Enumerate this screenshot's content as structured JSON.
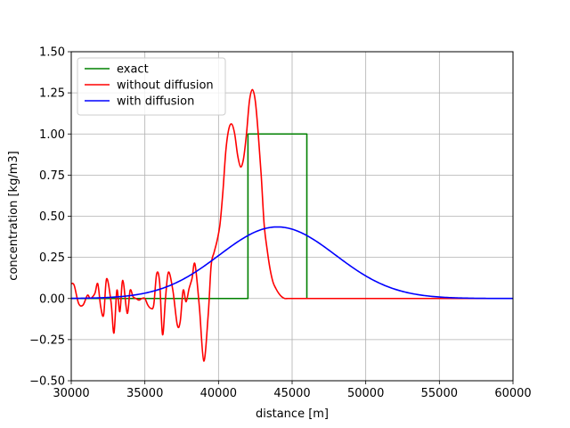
{
  "chart_data": {
    "type": "line",
    "xlabel": "distance [m]",
    "ylabel": "concentration [kg/m3]",
    "xlim": [
      30000,
      60000
    ],
    "ylim": [
      -0.5,
      1.5
    ],
    "xticks": [
      30000,
      35000,
      40000,
      45000,
      50000,
      55000,
      60000
    ],
    "yticks": [
      -0.5,
      -0.25,
      0.0,
      0.25,
      0.5,
      0.75,
      1.0,
      1.25,
      1.5
    ],
    "xtick_labels": [
      "30000",
      "35000",
      "40000",
      "45000",
      "50000",
      "55000",
      "60000"
    ],
    "ytick_labels": [
      "−0.50",
      "−0.25",
      "0.00",
      "0.25",
      "0.50",
      "0.75",
      "1.00",
      "1.25",
      "1.50"
    ],
    "grid": true,
    "legend_position": "top-left",
    "series": [
      {
        "name": "exact",
        "color": "#008000",
        "x": [
          30000,
          42000,
          42000,
          46000,
          46000,
          60000
        ],
        "y": [
          0,
          0,
          1.0,
          1.0,
          0,
          0
        ]
      },
      {
        "name": "without diffusion",
        "color": "#ff0000",
        "x": [
          30000,
          30200,
          30500,
          30800,
          31100,
          31300,
          31600,
          31800,
          32000,
          32200,
          32400,
          32700,
          32900,
          33100,
          33300,
          33500,
          33800,
          34000,
          34200,
          34400,
          34600,
          34800,
          35000,
          35200,
          35400,
          35600,
          35800,
          36000,
          36200,
          36400,
          36600,
          36900,
          37200,
          37400,
          37600,
          37800,
          38000,
          38200,
          38400,
          38700,
          39000,
          39300,
          39500,
          39700,
          39900,
          40100,
          40300,
          40500,
          40700,
          40900,
          41100,
          41300,
          41500,
          41700,
          41900,
          42100,
          42300,
          42500,
          42700,
          42900,
          43100,
          43300,
          43500,
          43700,
          43900,
          44100,
          44300,
          44500,
          44700,
          44900,
          45100,
          45300,
          45500,
          45700,
          45900,
          46100,
          46300,
          46500,
          46700,
          46900,
          47100,
          47300,
          47600,
          48000,
          48500,
          49000,
          50000,
          52000,
          55000,
          60000
        ],
        "y": [
          0.09,
          0.08,
          -0.03,
          -0.04,
          0.02,
          0.0,
          0.03,
          0.09,
          -0.05,
          -0.1,
          0.12,
          -0.02,
          -0.21,
          0.05,
          -0.08,
          0.11,
          -0.09,
          0.05,
          0.01,
          0.0,
          -0.01,
          0.0,
          0.0,
          -0.04,
          -0.06,
          -0.04,
          0.15,
          0.1,
          -0.22,
          0.0,
          0.16,
          0.05,
          -0.16,
          -0.14,
          0.05,
          -0.02,
          0.06,
          0.12,
          0.21,
          -0.05,
          -0.38,
          -0.1,
          0.2,
          0.28,
          0.35,
          0.45,
          0.65,
          0.9,
          1.03,
          1.06,
          1.0,
          0.87,
          0.8,
          0.85,
          1.0,
          1.2,
          1.27,
          1.2,
          1.0,
          0.75,
          0.45,
          0.3,
          0.18,
          0.1,
          0.06,
          0.03,
          0.01,
          0.0,
          0.0,
          0.0,
          0.0,
          0.0,
          0.0,
          0.0,
          0.0,
          0.0,
          0.0,
          0.0,
          0.0,
          0.0,
          0.0,
          0.0,
          0.0,
          0.0,
          0.0,
          0.0,
          0.0,
          0.0,
          0.0,
          0.0
        ]
      },
      {
        "name": "with diffusion",
        "color": "#0000ff",
        "gaussian": {
          "amplitude": 0.435,
          "center": 44000,
          "sigma": 3950
        }
      }
    ]
  }
}
